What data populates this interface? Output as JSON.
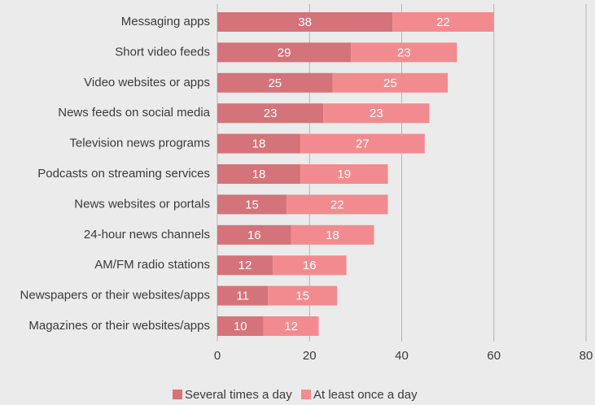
{
  "chart_data": {
    "type": "stacked-barh",
    "categories": [
      "Messaging apps",
      "Short video feeds",
      "Video websites or apps",
      "News feeds on social media",
      "Television news programs",
      "Podcasts on streaming services",
      "News websites or portals",
      "24-hour news channels",
      "AM/FM radio stations",
      "Newspapers or their websites/apps",
      "Magazines or their websites/apps"
    ],
    "series": [
      {
        "name": "Several times a day",
        "color": "#d4737a",
        "values": [
          38,
          29,
          25,
          23,
          18,
          18,
          15,
          16,
          12,
          11,
          10
        ]
      },
      {
        "name": "At least once a day",
        "color": "#f28b8f",
        "values": [
          22,
          23,
          25,
          23,
          27,
          19,
          22,
          18,
          16,
          15,
          12
        ]
      }
    ],
    "xlim": [
      0,
      80
    ],
    "xticks": [
      0,
      20,
      40,
      60,
      80
    ],
    "grid": true,
    "legend": "bottom"
  }
}
